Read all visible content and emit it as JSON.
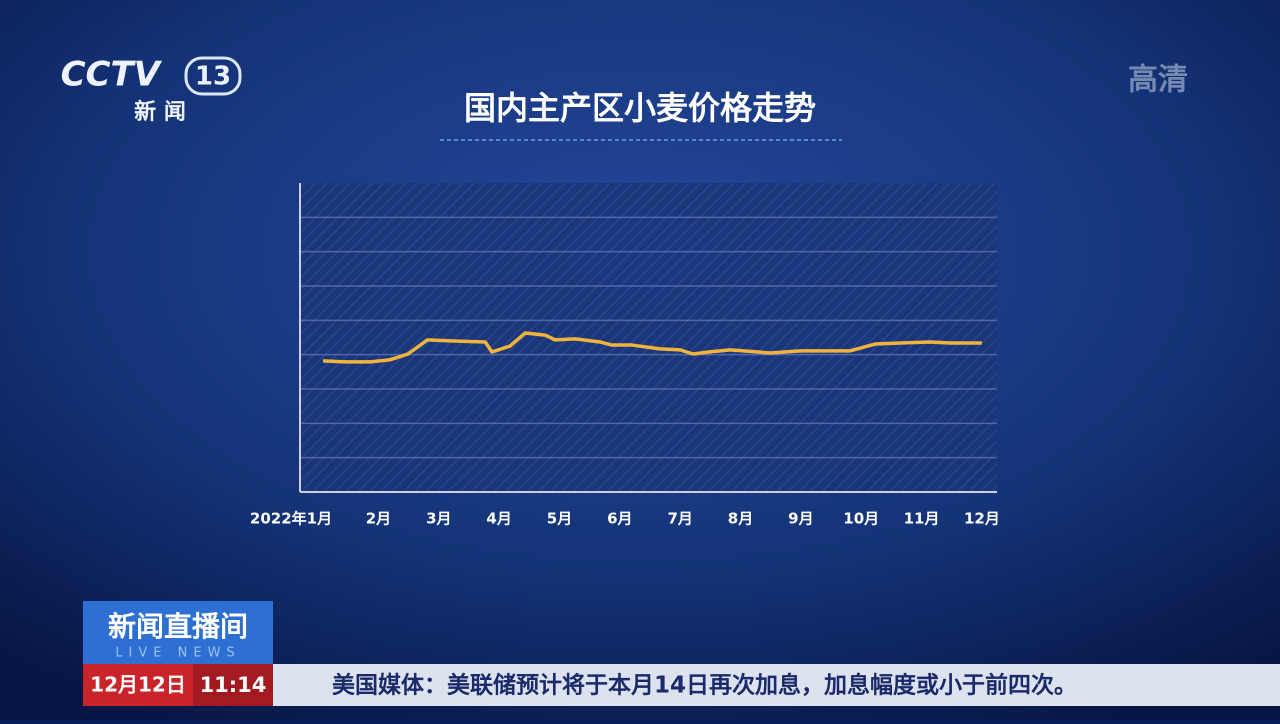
{
  "channel": {
    "logo": "CCTV",
    "number": "13",
    "name": "新 闻",
    "quality": "高清"
  },
  "chart_data": {
    "type": "line",
    "title": "国内主产区小麦价格走势",
    "x": [
      1.08,
      1.45,
      1.86,
      2.19,
      2.49,
      2.81,
      3.19,
      3.77,
      3.88,
      4.18,
      4.43,
      4.76,
      4.93,
      5.26,
      5.67,
      5.87,
      6.2,
      6.67,
      7.0,
      7.21,
      7.49,
      7.83,
      8.49,
      8.99,
      9.81,
      10.23,
      10.64,
      11.14,
      11.47,
      12.0
    ],
    "values": [
      3.82,
      3.79,
      3.79,
      3.85,
      4.02,
      4.43,
      4.4,
      4.37,
      4.08,
      4.25,
      4.63,
      4.57,
      4.43,
      4.46,
      4.37,
      4.28,
      4.28,
      4.17,
      4.14,
      4.02,
      4.08,
      4.14,
      4.05,
      4.11,
      4.11,
      4.31,
      4.34,
      4.37,
      4.34,
      4.34
    ],
    "color": "#f0b43c",
    "xlim": [
      0.7,
      12.25
    ],
    "xticks": [
      {
        "value": 1,
        "label": "2022年1月"
      },
      {
        "value": 2,
        "label": "2月"
      },
      {
        "value": 3,
        "label": "3月"
      },
      {
        "value": 4,
        "label": "4月"
      },
      {
        "value": 5,
        "label": "5月"
      },
      {
        "value": 6,
        "label": "6月"
      },
      {
        "value": 7,
        "label": "7月"
      },
      {
        "value": 8,
        "label": "8月"
      },
      {
        "value": 9,
        "label": "9月"
      },
      {
        "value": 10,
        "label": "10月"
      },
      {
        "value": 11,
        "label": "11月"
      },
      {
        "value": 12,
        "label": "12月"
      }
    ],
    "ylim": [
      0,
      9
    ]
  },
  "program": {
    "name": "新闻直播间",
    "subtitle": "LIVE NEWS",
    "date": "12月12日",
    "time": "11:14",
    "ticker": "美国媒体：美联储预计将于本月14日再次加息，加息幅度或小于前四次。"
  }
}
